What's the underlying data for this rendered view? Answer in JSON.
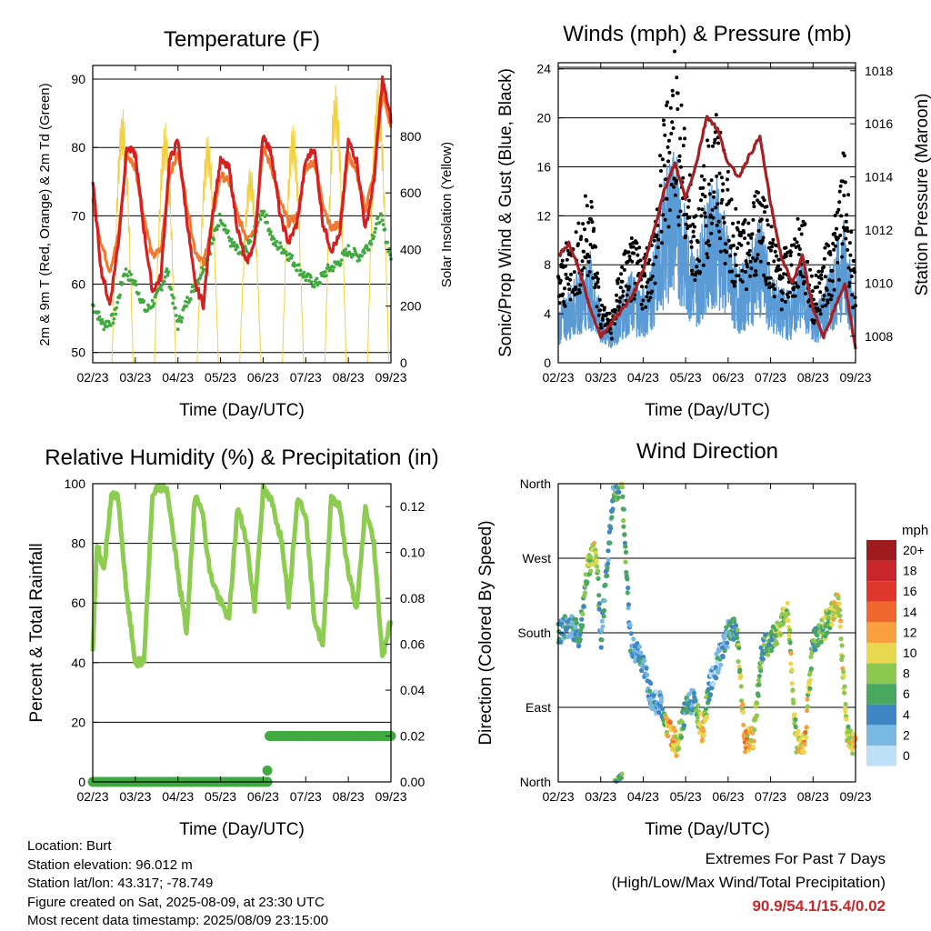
{
  "colors": {
    "t2m": "#d42020",
    "t9m": "#f07830",
    "td": "#40aa40",
    "solar": "#f2d040",
    "sonic": "#5b9bd5",
    "gust": "#000000",
    "pressure": "#a51f24",
    "rh": "#8ccc50",
    "rain": "#40aa40",
    "extremes": "#c8262a"
  },
  "charts": {
    "temperature": {
      "type": "line",
      "title": "Temperature (F)",
      "xlabel": "Time (Day/UTC)",
      "ylabel": "2m & 9m T (Red, Orange) & 2m Td (Green)",
      "y2label": "Solar Insolation (Yellow)",
      "x_ticks": [
        "02/23",
        "03/23",
        "04/23",
        "05/23",
        "06/23",
        "07/23",
        "08/23",
        "09/23"
      ],
      "y_ticks": [
        50,
        60,
        70,
        80,
        90
      ],
      "y2_ticks": [
        0,
        200,
        400,
        600,
        800
      ],
      "ylim": [
        48.5,
        92
      ],
      "y2lim": [
        0,
        1050
      ]
    },
    "winds": {
      "type": "line",
      "title": "Winds (mph) & Pressure (mb)",
      "xlabel": "Time (Day/UTC)",
      "ylabel": "Sonic/Prop Wind & Gust (Blue, Black)",
      "y2label": "Station Pressure (Maroon)",
      "x_ticks": [
        "02/23",
        "03/23",
        "04/23",
        "05/23",
        "06/23",
        "07/23",
        "08/23",
        "09/23"
      ],
      "y_ticks": [
        0,
        4,
        8,
        12,
        16,
        20,
        24
      ],
      "y2_ticks": [
        1008,
        1010,
        1012,
        1014,
        1016,
        1018
      ],
      "ylim": [
        0,
        24.5
      ],
      "y2lim": [
        1007,
        1018.3
      ]
    },
    "humidity": {
      "type": "line",
      "title": "Relative Humidity (%) & Precipitation (in)",
      "xlabel": "Time (Day/UTC)",
      "ylabel": "Percent & Total Rainfall",
      "x_ticks": [
        "02/23",
        "03/23",
        "04/23",
        "05/23",
        "06/23",
        "07/23",
        "08/23",
        "09/23"
      ],
      "y_ticks": [
        0,
        20,
        40,
        60,
        80,
        100
      ],
      "y2_ticks": [
        "0.00",
        "0.02",
        "0.04",
        "0.06",
        "0.08",
        "0.10",
        "0.12"
      ],
      "ylim": [
        0,
        100
      ],
      "y2lim": [
        0,
        0.13
      ]
    },
    "direction": {
      "type": "scatter",
      "title": "Wind Direction",
      "xlabel": "Time (Day/UTC)",
      "ylabel": "Direction (Colored By Speed)",
      "x_ticks": [
        "02/23",
        "03/23",
        "04/23",
        "05/23",
        "06/23",
        "07/23",
        "08/23",
        "09/23"
      ],
      "y_ticks": [
        "North",
        "East",
        "South",
        "West",
        "North"
      ],
      "legend_title": "mph",
      "legend_labels": [
        "20+",
        "18",
        "16",
        "14",
        "12",
        "10",
        "8",
        "6",
        "4",
        "2",
        "0"
      ],
      "legend_colors": [
        "#9e1b20",
        "#c8262a",
        "#e0372d",
        "#f0672e",
        "#f8a13e",
        "#e8d850",
        "#8cc850",
        "#48a860",
        "#3e86c4",
        "#7ab8e4",
        "#bde0f6"
      ]
    }
  },
  "chart_data": [
    {
      "type": "line",
      "title": "Temperature (F)",
      "series": [
        {
          "name": "2m T",
          "x": [
            0,
            0.2,
            0.4,
            0.6,
            0.8,
            1.0,
            1.2,
            1.4,
            1.6,
            1.8,
            2.0,
            2.2,
            2.4,
            2.6,
            2.8,
            3.0,
            3.2,
            3.4,
            3.6,
            3.8,
            4.0,
            4.2,
            4.4,
            4.6,
            4.8,
            5.0,
            5.2,
            5.4,
            5.6,
            5.8,
            6.0,
            6.2,
            6.4,
            6.6,
            6.8,
            7.0
          ],
          "y": [
            75,
            62,
            57,
            66,
            80,
            79,
            68,
            59,
            61,
            78,
            81,
            70,
            60,
            57,
            70,
            78,
            77,
            68,
            63,
            66,
            82,
            79,
            70,
            66,
            69,
            78,
            80,
            69,
            65,
            67,
            81,
            78,
            68,
            75,
            90,
            84
          ]
        },
        {
          "name": "9m T",
          "x": [
            0,
            0.2,
            0.4,
            0.6,
            0.8,
            1.0,
            1.2,
            1.4,
            1.6,
            1.8,
            2.0,
            2.2,
            2.4,
            2.6,
            2.8,
            3.0,
            3.2,
            3.4,
            3.6,
            3.8,
            4.0,
            4.2,
            4.4,
            4.6,
            4.8,
            5.0,
            5.2,
            5.4,
            5.6,
            5.8,
            6.0,
            6.2,
            6.4,
            6.6,
            6.8,
            7.0
          ],
          "y": [
            72,
            66,
            62,
            67,
            79,
            77,
            70,
            64,
            65,
            76,
            79,
            72,
            65,
            63,
            69,
            76,
            75,
            70,
            67,
            68,
            80,
            77,
            72,
            69,
            70,
            77,
            78,
            72,
            68,
            69,
            79,
            76,
            71,
            76,
            88,
            83
          ]
        },
        {
          "name": "2m Td",
          "x": [
            0,
            0.25,
            0.5,
            0.75,
            1.0,
            1.25,
            1.5,
            1.75,
            2.0,
            2.25,
            2.5,
            2.75,
            3.0,
            3.25,
            3.5,
            3.75,
            4.0,
            4.25,
            4.5,
            4.75,
            5.0,
            5.25,
            5.5,
            5.75,
            6.0,
            6.25,
            6.5,
            6.75,
            7.0
          ],
          "y": [
            57,
            54,
            55,
            62,
            60,
            56,
            58,
            62,
            54,
            58,
            61,
            65,
            70,
            66,
            64,
            67,
            71,
            66,
            65,
            63,
            61,
            60,
            62,
            63,
            65,
            64,
            66,
            70,
            64
          ]
        },
        {
          "name": "Solar",
          "days": 7,
          "peak": [
            900,
            850,
            810,
            700,
            850,
            980,
            1000
          ]
        }
      ]
    },
    {
      "type": "line",
      "title": "Winds (mph) & Pressure (mb)",
      "series": [
        {
          "name": "Sonic/Prop Wind",
          "x": [
            0,
            0.25,
            0.5,
            0.75,
            1.0,
            1.25,
            1.5,
            1.75,
            2.0,
            2.25,
            2.5,
            2.75,
            3.0,
            3.25,
            3.5,
            3.75,
            4.0,
            4.25,
            4.5,
            4.75,
            5.0,
            5.25,
            5.5,
            5.75,
            6.0,
            6.25,
            6.5,
            6.75,
            7.0
          ],
          "y": [
            3,
            4,
            5,
            6,
            3,
            2,
            4,
            5,
            4,
            6,
            10,
            12,
            8,
            6,
            9,
            10,
            7,
            5,
            6,
            8,
            5,
            4,
            4,
            6,
            3,
            4,
            6,
            8,
            3
          ]
        },
        {
          "name": "Gust",
          "x": [
            0,
            0.25,
            0.5,
            0.75,
            1.0,
            1.25,
            1.5,
            1.75,
            2.0,
            2.25,
            2.5,
            2.75,
            3.0,
            3.25,
            3.5,
            3.75,
            4.0,
            4.25,
            4.5,
            4.75,
            5.0,
            5.25,
            5.5,
            5.75,
            6.0,
            6.25,
            6.5,
            6.75,
            7.0
          ],
          "y": [
            6,
            8,
            9,
            12,
            4,
            3,
            7,
            8,
            7,
            9,
            16,
            21,
            14,
            10,
            14,
            16,
            12,
            9,
            9,
            13,
            9,
            7,
            8,
            10,
            5,
            7,
            9,
            14,
            5
          ]
        },
        {
          "name": "Station Pressure",
          "x": [
            0,
            0.25,
            0.5,
            0.75,
            1.0,
            1.25,
            1.5,
            1.75,
            2.0,
            2.25,
            2.5,
            2.75,
            3.0,
            3.25,
            3.5,
            3.75,
            4.0,
            4.25,
            4.5,
            4.75,
            5.0,
            5.25,
            5.5,
            5.75,
            6.0,
            6.25,
            6.5,
            6.75,
            7.0
          ],
          "y": [
            1011,
            1011.5,
            1010.5,
            1009,
            1008,
            1008.5,
            1009,
            1009.5,
            1010.5,
            1012,
            1013.5,
            1014.5,
            1013.2,
            1014.5,
            1016.3,
            1015.8,
            1014.5,
            1014.0,
            1014.8,
            1015.5,
            1013,
            1011,
            1010,
            1011,
            1009,
            1008,
            1009,
            1010,
            1007.5
          ]
        }
      ]
    },
    {
      "type": "line",
      "title": "Relative Humidity (%) & Precipitation (in)",
      "series": [
        {
          "name": "RH",
          "x": [
            0,
            0.1,
            0.25,
            0.45,
            0.6,
            0.8,
            1.0,
            1.2,
            1.4,
            1.55,
            1.75,
            2.0,
            2.2,
            2.4,
            2.55,
            2.75,
            3.0,
            3.2,
            3.4,
            3.6,
            3.8,
            4.0,
            4.2,
            4.45,
            4.6,
            4.8,
            5.0,
            5.2,
            5.4,
            5.6,
            5.8,
            6.0,
            6.2,
            6.4,
            6.6,
            6.8,
            7.0
          ],
          "y": [
            44,
            80,
            70,
            97,
            95,
            62,
            40,
            40,
            95,
            99,
            98,
            70,
            50,
            96,
            93,
            70,
            60,
            55,
            92,
            82,
            58,
            98,
            94,
            80,
            60,
            95,
            90,
            55,
            45,
            96,
            92,
            70,
            58,
            92,
            80,
            42,
            55
          ]
        },
        {
          "name": "Total Precipitation",
          "x": [
            0,
            4.1,
            4.12,
            7.0
          ],
          "y": [
            0.0,
            0.0,
            0.02,
            0.02
          ]
        }
      ]
    },
    {
      "type": "scatter",
      "title": "Wind Direction",
      "series": [
        {
          "name": "Direction",
          "x": [
            0,
            0.3,
            0.5,
            0.7,
            0.9,
            1.0,
            1.3,
            1.5,
            1.7,
            2.0,
            2.2,
            2.4,
            2.6,
            2.8,
            3.0,
            3.2,
            3.4,
            3.6,
            3.8,
            4.0,
            4.2,
            4.4,
            4.6,
            4.8,
            5.0,
            5.2,
            5.4,
            5.6,
            5.8,
            6.0,
            6.2,
            6.4,
            6.6,
            6.8,
            7.0
          ],
          "y": [
            180,
            190,
            175,
            260,
            280,
            170,
            350,
            360,
            170,
            140,
            100,
            95,
            60,
            45,
            90,
            100,
            60,
            125,
            150,
            180,
            185,
            50,
            55,
            160,
            170,
            185,
            210,
            50,
            45,
            170,
            180,
            200,
            220,
            60,
            40
          ],
          "speed": [
            4,
            3,
            5,
            8,
            9,
            4,
            5,
            7,
            3,
            4,
            3,
            2,
            12,
            10,
            4,
            4,
            12,
            2,
            3,
            4,
            6,
            12,
            10,
            6,
            6,
            8,
            9,
            8,
            12,
            5,
            7,
            8,
            10,
            8,
            11
          ]
        }
      ]
    }
  ],
  "footer": {
    "lines": [
      "Location: Burt",
      "Station elevation: 96.012 m",
      "Station lat/lon: 43.317; -78.749",
      "Figure created on Sat, 2025-08-09, at 23:30 UTC",
      "Most recent data timestamp: 2025/08/09 23:15:00"
    ],
    "extremes_title_1": "Extremes For Past 7 Days",
    "extremes_title_2": "(High/Low/Max Wind/Total Precipitation)",
    "extremes_values": "90.9/54.1/15.4/0.02"
  }
}
